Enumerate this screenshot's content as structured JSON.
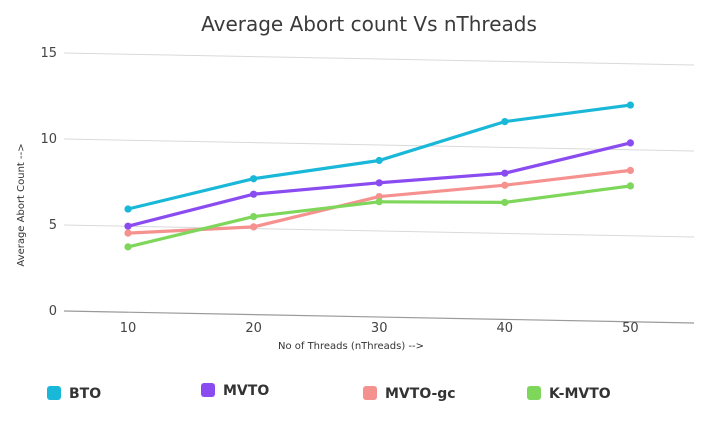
{
  "chart_data": {
    "type": "line",
    "title": "Average Abort count Vs nThreads",
    "xlabel": "No of Threads (nThreads) -->",
    "ylabel": "Average Abort Count -->",
    "x": [
      10,
      20,
      30,
      40,
      50
    ],
    "x_tick_labels": [
      "10",
      "20",
      "30",
      "40",
      "50"
    ],
    "y_ticks": [
      0,
      5,
      10,
      15
    ],
    "y_tick_labels": [
      "0",
      "5",
      "10",
      "15"
    ],
    "ylim": [
      0,
      15
    ],
    "grid": true,
    "legend_position": "bottom",
    "series": [
      {
        "name": "BTO",
        "color": "#1ab8d8",
        "values": [
          6.0,
          7.9,
          9.1,
          11.5,
          12.6
        ]
      },
      {
        "name": "MVTO",
        "color": "#8a4cf0",
        "values": [
          5.0,
          7.0,
          7.8,
          8.5,
          10.4
        ]
      },
      {
        "name": "MVTO-gc",
        "color": "#f5918f",
        "values": [
          4.6,
          5.1,
          7.0,
          7.8,
          8.8
        ]
      },
      {
        "name": "K-MVTO",
        "color": "#7ed65a",
        "values": [
          3.8,
          5.7,
          6.7,
          6.8,
          7.9
        ]
      }
    ]
  }
}
